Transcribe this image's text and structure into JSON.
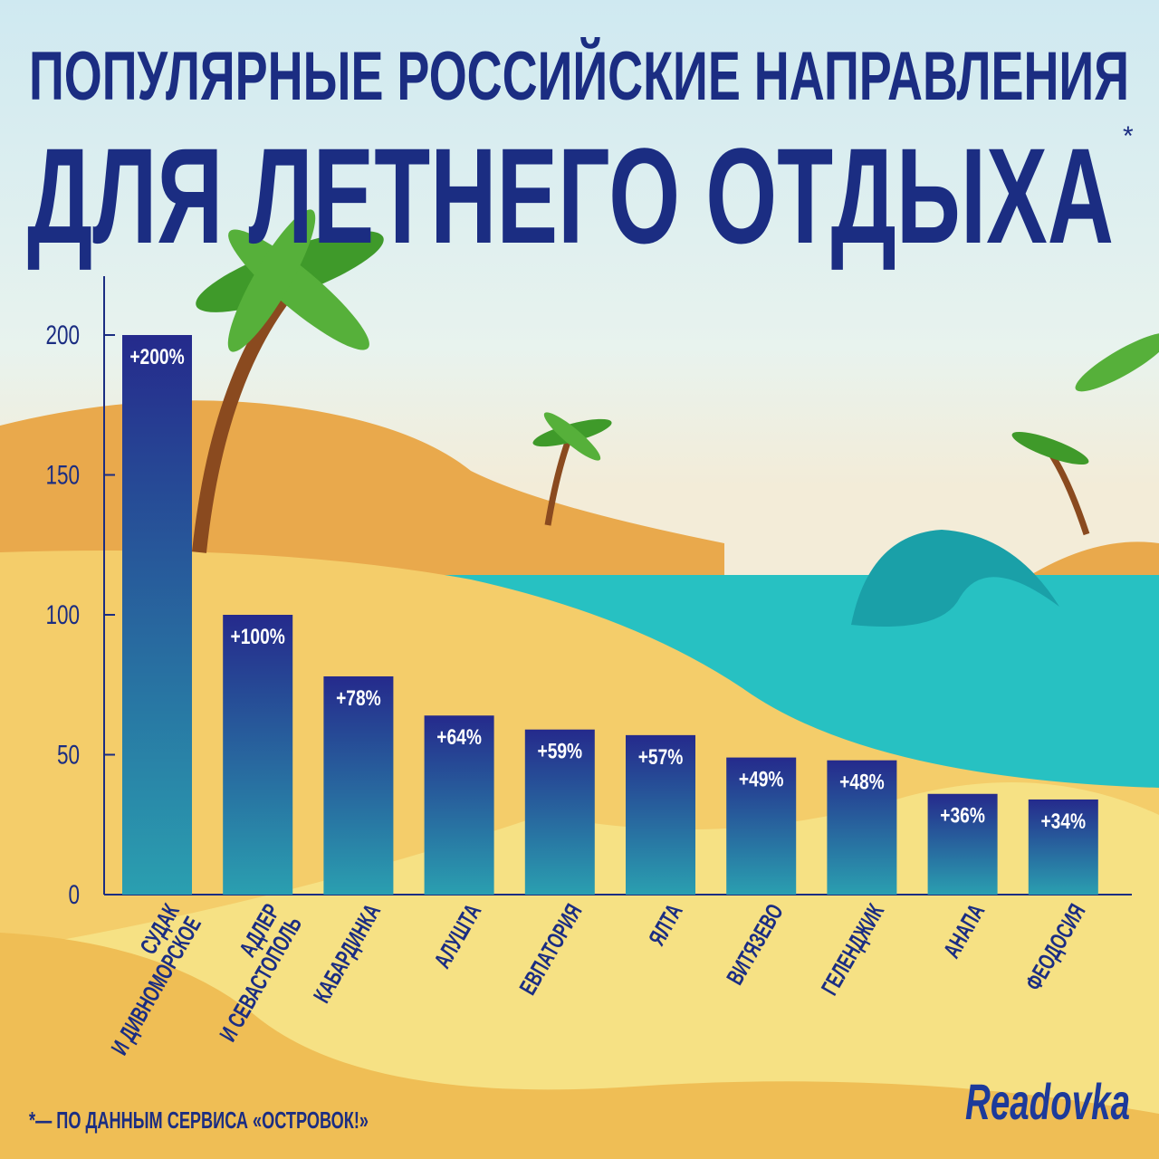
{
  "title_line1": "ПОПУЛЯРНЫЕ РОССИЙСКИЕ НАПРАВЛЕНИЯ",
  "title_line2": "ДЛЯ ЛЕТНЕГО ОТДЫХА",
  "title_asterisk": "*",
  "footnote": "*— ПО ДАННЫМ СЕРВИСА «ОСТРОВОК!»",
  "logo": "Readovka",
  "colors": {
    "text": "#1b2d82",
    "bar_top": "#252a8c",
    "bar_bottom": "#2a9fb0",
    "axis": "#1b2d82"
  },
  "chart_data": {
    "type": "bar",
    "categories": [
      "СУДАК И ДИВНОМОРСКОЕ",
      "АДЛЕР И СЕВАСТОПОЛЬ",
      "КАБАРДИНКА",
      "АЛУШТА",
      "ЕВПАТОРИЯ",
      "ЯЛТА",
      "ВИТЯЗЕВО",
      "ГЕЛЕНДЖИК",
      "АНАПА",
      "ФЕОДОСИЯ"
    ],
    "values": [
      200,
      100,
      78,
      64,
      59,
      57,
      49,
      48,
      36,
      34
    ],
    "data_labels": [
      "+200%",
      "+100%",
      "+78%",
      "+64%",
      "+59%",
      "+57%",
      "+49%",
      "+48%",
      "+36%",
      "+34%"
    ],
    "yticks": [
      0,
      50,
      100,
      150,
      200
    ],
    "ylim": [
      0,
      220
    ],
    "grid": false
  }
}
